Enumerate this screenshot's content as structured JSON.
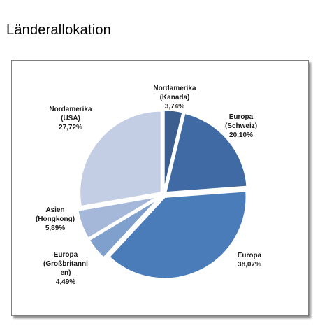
{
  "page": {
    "title": "Länderallokation"
  },
  "chart_data": {
    "type": "pie",
    "title": "",
    "slices": [
      {
        "label": [
          "Nordamerika",
          "(Kanada)"
        ],
        "value_text": "3,74%",
        "value": 3.74,
        "color": "#3d5f8f"
      },
      {
        "label": [
          "Europa",
          "(Schweiz)"
        ],
        "value_text": "20,10%",
        "value": 20.1,
        "color": "#3f6aa3"
      },
      {
        "label": [
          "Europa"
        ],
        "value_text": "38,07%",
        "value": 38.07,
        "color": "#4a7cba"
      },
      {
        "label": [
          "Europa",
          "(Großbritanni",
          "en)"
        ],
        "value_text": "4,49%",
        "value": 4.49,
        "color": "#7f9fcd"
      },
      {
        "label": [
          "Asien",
          "(Hongkong)"
        ],
        "value_text": "5,89%",
        "value": 5.89,
        "color": "#a5b8d9"
      },
      {
        "label": [
          "Nordamerika",
          "(USA)"
        ],
        "value_text": "27,72%",
        "value": 27.72,
        "color": "#c3cde3"
      }
    ],
    "start_angle": "top",
    "direction": "clockwise",
    "legend": "none"
  }
}
